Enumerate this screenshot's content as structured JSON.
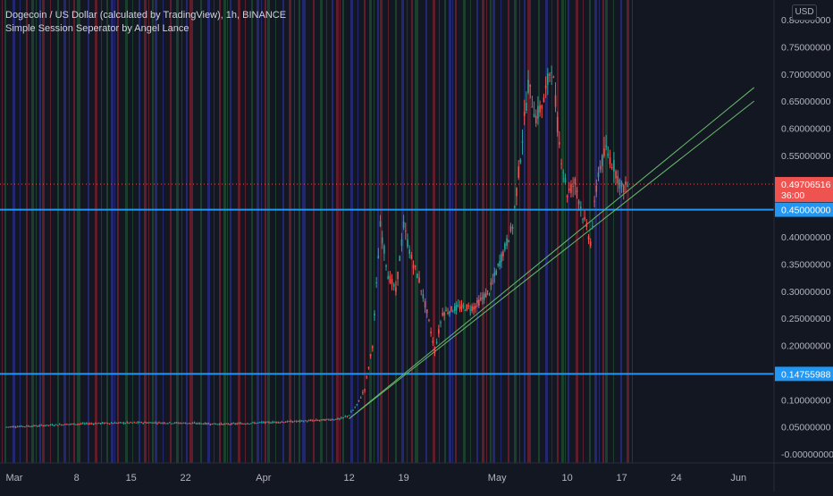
{
  "header": {
    "title": "Dogecoin / US Dollar (calculated by TradingView), 1h, BINANCE",
    "indicator": "Simple Session Seperator by Angel Lance",
    "currency": "USD"
  },
  "colors": {
    "background": "#131722",
    "up": "#26a69a",
    "down": "#ef5350",
    "hline": "#2196f3",
    "trend": "#66bb6a",
    "session_red": "#7a2030",
    "session_blue": "#2a2d8a",
    "session_green": "#1f4d32"
  },
  "chart_data": {
    "type": "candlestick",
    "title": "Dogecoin / US Dollar (calculated by TradingView), 1h, BINANCE",
    "x_tick_labels": [
      "Mar",
      "8",
      "15",
      "22",
      "Apr",
      "12",
      "19",
      "May",
      "10",
      "17",
      "24",
      "Jun"
    ],
    "y_tick_labels": [
      "0.80000000",
      "0.75000000",
      "0.70000000",
      "0.65000000",
      "0.60000000",
      "0.55000000",
      "0.50000000",
      "0.45000000",
      "0.40000000",
      "0.35000000",
      "0.30000000",
      "0.25000000",
      "0.20000000",
      "0.15000000",
      "0.10000000",
      "0.05000000",
      "-0.00000000"
    ],
    "ylim": [
      -0.02,
      0.82
    ],
    "horizontal_lines": [
      {
        "value": 0.45,
        "label": "0.45000000"
      },
      {
        "value": 0.14755988,
        "label": "0.14755988"
      }
    ],
    "last_price": {
      "value": 0.49706516,
      "label": "0.49706516",
      "countdown": "36:00"
    },
    "price_series": [
      {
        "date": "2021-02-27",
        "close": 0.05
      },
      {
        "date": "2021-03-03",
        "close": 0.052
      },
      {
        "date": "2021-03-07",
        "close": 0.055
      },
      {
        "date": "2021-03-12",
        "close": 0.057
      },
      {
        "date": "2021-03-17",
        "close": 0.058
      },
      {
        "date": "2021-03-22",
        "close": 0.057
      },
      {
        "date": "2021-03-27",
        "close": 0.055
      },
      {
        "date": "2021-04-01",
        "close": 0.058
      },
      {
        "date": "2021-04-05",
        "close": 0.06
      },
      {
        "date": "2021-04-08",
        "close": 0.062
      },
      {
        "date": "2021-04-11",
        "close": 0.065
      },
      {
        "date": "2021-04-12",
        "close": 0.072
      },
      {
        "date": "2021-04-13",
        "close": 0.09
      },
      {
        "date": "2021-04-14",
        "close": 0.12
      },
      {
        "date": "2021-04-15",
        "close": 0.2
      },
      {
        "date": "2021-04-16",
        "close": 0.42
      },
      {
        "date": "2021-04-17",
        "close": 0.33
      },
      {
        "date": "2021-04-18",
        "close": 0.3
      },
      {
        "date": "2021-04-19",
        "close": 0.42
      },
      {
        "date": "2021-04-20",
        "close": 0.36
      },
      {
        "date": "2021-04-21",
        "close": 0.32
      },
      {
        "date": "2021-04-22",
        "close": 0.26
      },
      {
        "date": "2021-04-23",
        "close": 0.19
      },
      {
        "date": "2021-04-24",
        "close": 0.26
      },
      {
        "date": "2021-04-26",
        "close": 0.27
      },
      {
        "date": "2021-04-28",
        "close": 0.27
      },
      {
        "date": "2021-04-30",
        "close": 0.3
      },
      {
        "date": "2021-05-02",
        "close": 0.38
      },
      {
        "date": "2021-05-03",
        "close": 0.42
      },
      {
        "date": "2021-05-04",
        "close": 0.55
      },
      {
        "date": "2021-05-05",
        "close": 0.68
      },
      {
        "date": "2021-05-06",
        "close": 0.62
      },
      {
        "date": "2021-05-07",
        "close": 0.65
      },
      {
        "date": "2021-05-08",
        "close": 0.72
      },
      {
        "date": "2021-05-09",
        "close": 0.57
      },
      {
        "date": "2021-05-10",
        "close": 0.48
      },
      {
        "date": "2021-05-11",
        "close": 0.5
      },
      {
        "date": "2021-05-12",
        "close": 0.44
      },
      {
        "date": "2021-05-13",
        "close": 0.39
      },
      {
        "date": "2021-05-14",
        "close": 0.52
      },
      {
        "date": "2021-05-15",
        "close": 0.56
      },
      {
        "date": "2021-05-16",
        "close": 0.53
      },
      {
        "date": "2021-05-17",
        "close": 0.49
      },
      {
        "date": "2021-05-18",
        "close": 0.497
      }
    ],
    "trend_lines": [
      {
        "from": {
          "date": "2021-04-12",
          "value": 0.065
        },
        "to": {
          "date": "2021-06-03",
          "value": 0.675
        }
      },
      {
        "from": {
          "date": "2021-04-12",
          "value": 0.065
        },
        "to": {
          "date": "2021-06-03",
          "value": 0.65
        }
      }
    ],
    "grid": false
  }
}
